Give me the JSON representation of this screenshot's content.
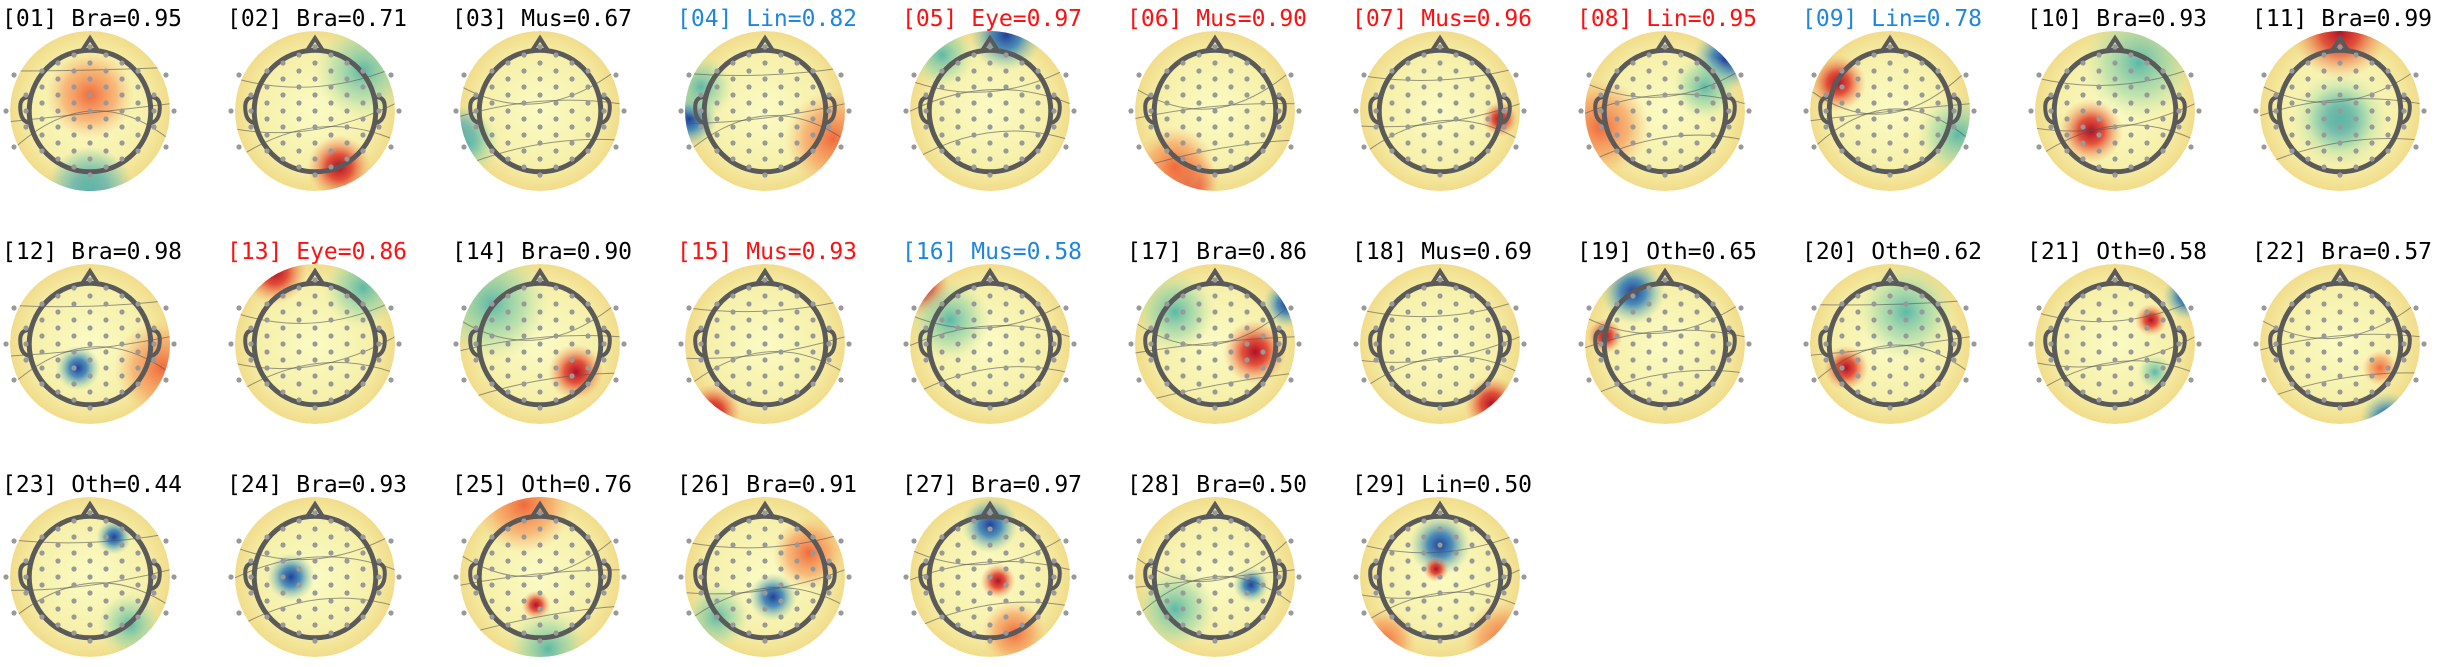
{
  "components": [
    {
      "label": "[01] Bra=0.95",
      "color": "#000000"
    },
    {
      "label": "[02] Bra=0.71",
      "color": "#000000"
    },
    {
      "label": "[03] Mus=0.67",
      "color": "#000000"
    },
    {
      "label": "[04] Lin=0.82",
      "color": "#1f86e0"
    },
    {
      "label": "[05] Eye=0.97",
      "color": "#ff1010"
    },
    {
      "label": "[06] Mus=0.90",
      "color": "#ff1010"
    },
    {
      "label": "[07] Mus=0.96",
      "color": "#ff1010"
    },
    {
      "label": "[08] Lin=0.95",
      "color": "#ff1010"
    },
    {
      "label": "[09] Lin=0.78",
      "color": "#1f86e0"
    },
    {
      "label": "[10] Bra=0.93",
      "color": "#000000"
    },
    {
      "label": "[11] Bra=0.99",
      "color": "#000000"
    },
    {
      "label": "[12] Bra=0.98",
      "color": "#000000"
    },
    {
      "label": "[13] Eye=0.86",
      "color": "#ff1010"
    },
    {
      "label": "[14] Bra=0.90",
      "color": "#000000"
    },
    {
      "label": "[15] Mus=0.93",
      "color": "#ff1010"
    },
    {
      "label": "[16] Mus=0.58",
      "color": "#1f86e0"
    },
    {
      "label": "[17] Bra=0.86",
      "color": "#000000"
    },
    {
      "label": "[18] Mus=0.69",
      "color": "#000000"
    },
    {
      "label": "[19] Oth=0.65",
      "color": "#000000"
    },
    {
      "label": "[20] Oth=0.62",
      "color": "#000000"
    },
    {
      "label": "[21] Oth=0.58",
      "color": "#000000"
    },
    {
      "label": "[22] Bra=0.57",
      "color": "#000000"
    },
    {
      "label": "[23] Oth=0.44",
      "color": "#000000"
    },
    {
      "label": "[24] Bra=0.93",
      "color": "#000000"
    },
    {
      "label": "[25] Oth=0.76",
      "color": "#000000"
    },
    {
      "label": "[26] Bra=0.91",
      "color": "#000000"
    },
    {
      "label": "[27] Bra=0.97",
      "color": "#000000"
    },
    {
      "label": "[28] Bra=0.50",
      "color": "#000000"
    },
    {
      "label": "[29] Lin=0.50",
      "color": "#000000"
    }
  ]
}
